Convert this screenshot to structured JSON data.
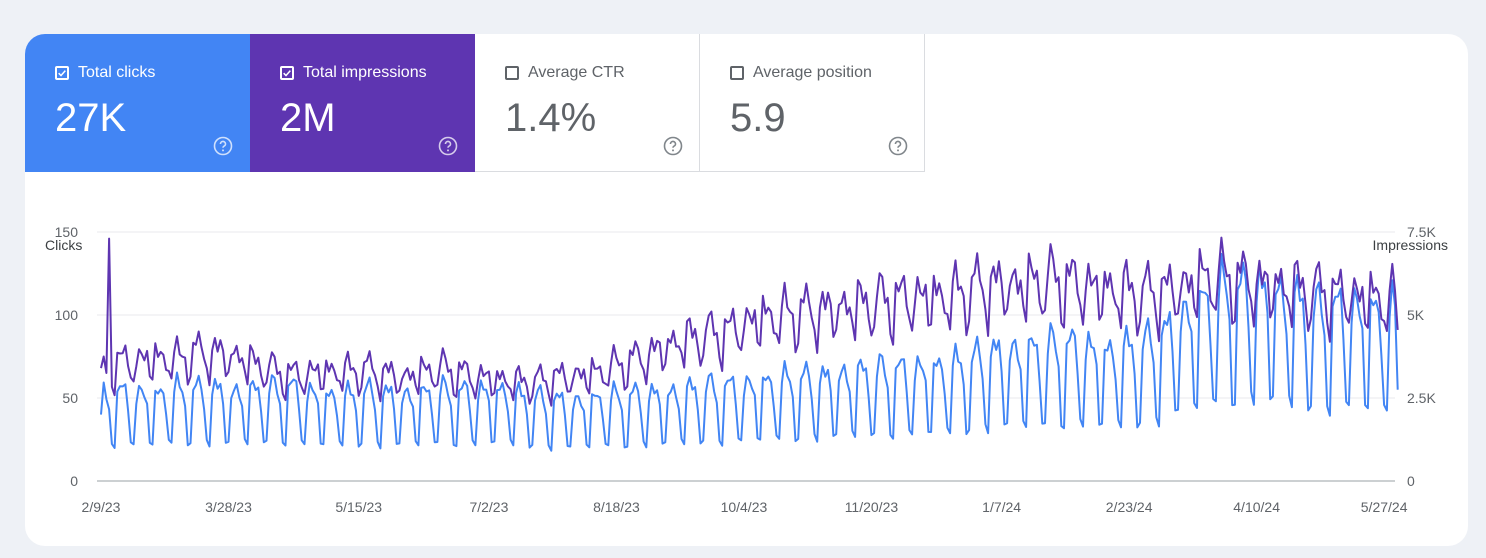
{
  "metrics": [
    {
      "key": "clicks",
      "label": "Total clicks",
      "value": "27K",
      "checked": true,
      "color": "#4285f4"
    },
    {
      "key": "impressions",
      "label": "Total impressions",
      "value": "2M",
      "checked": true,
      "color": "#5e35b1"
    },
    {
      "key": "ctr",
      "label": "Average CTR",
      "value": "1.4%",
      "checked": false
    },
    {
      "key": "position",
      "label": "Average position",
      "value": "5.9",
      "checked": false
    }
  ],
  "chart_data": {
    "type": "line",
    "ylabel_left": "Clicks",
    "ylabel_right": "Impressions",
    "y_left_ticks": [
      "0",
      "50",
      "100",
      "150"
    ],
    "y_right_ticks": [
      "0",
      "2.5K",
      "5K",
      "7.5K"
    ],
    "ylim_left": [
      0,
      150
    ],
    "ylim_right": [
      0,
      7500
    ],
    "x_tick_labels": [
      "2/9/23",
      "3/28/23",
      "5/15/23",
      "7/2/23",
      "8/18/23",
      "10/4/23",
      "11/20/23",
      "1/7/24",
      "2/23/24",
      "4/10/24",
      "5/27/24"
    ],
    "date_range": [
      "2/9/23",
      "6/1/24"
    ],
    "grid": true,
    "series": [
      {
        "name": "Clicks",
        "axis": "left",
        "color": "#4285f4",
        "weekly_pattern": [
          1.0,
          0.98,
          0.92,
          0.75,
          0.4,
          0.38,
          0.9
        ],
        "weekly_peaks": [
          56,
          58,
          57,
          57,
          60,
          59,
          60,
          58,
          60,
          60,
          61,
          58,
          56,
          56,
          58,
          57,
          56,
          58,
          59,
          58,
          59,
          60,
          56,
          54,
          53,
          52,
          54,
          55,
          56,
          57,
          58,
          60,
          61,
          62,
          63,
          65,
          66,
          67,
          68,
          70,
          72,
          72,
          73,
          74,
          75,
          76,
          80,
          85,
          86,
          87,
          88,
          89,
          88,
          85,
          87,
          90,
          98,
          110,
          118,
          125,
          125,
          128,
          124,
          118,
          112,
          115,
          116,
          112,
          110,
          104,
          105,
          104,
          100,
          100,
          102,
          102,
          103,
          90
        ],
        "start_value": 40,
        "end_value": 55
      },
      {
        "name": "Impressions",
        "axis": "right",
        "color": "#5e35b1",
        "weekly_pattern": [
          1.0,
          0.98,
          0.95,
          0.9,
          0.78,
          0.75,
          0.97
        ],
        "weekly_peaks": [
          3500,
          3900,
          3950,
          4050,
          4000,
          4200,
          4200,
          4100,
          3900,
          3650,
          3450,
          3550,
          3600,
          3600,
          3650,
          3500,
          3400,
          3600,
          3700,
          3500,
          3400,
          3350,
          3250,
          3250,
          3400,
          3450,
          3550,
          3750,
          3950,
          4200,
          4500,
          4700,
          4800,
          4900,
          5200,
          5400,
          5450,
          5550,
          5600,
          5700,
          5800,
          5900,
          5950,
          6050,
          6050,
          6100,
          6350,
          6450,
          6450,
          6500,
          6600,
          6500,
          6400,
          6300,
          6200,
          6150,
          6250,
          6400,
          6650,
          6700,
          6600,
          6500,
          6400,
          6300,
          6200,
          6150,
          6100,
          6000,
          5950,
          5800,
          5700,
          5600,
          5500,
          5450,
          5400,
          5350,
          5250,
          5100
        ],
        "start_value": 3400,
        "end_value": 4550,
        "spike": {
          "date": "2/12/23",
          "value": 7300
        }
      }
    ]
  },
  "icons": {
    "checkbox": "check-icon",
    "help": "help-circle-icon"
  }
}
